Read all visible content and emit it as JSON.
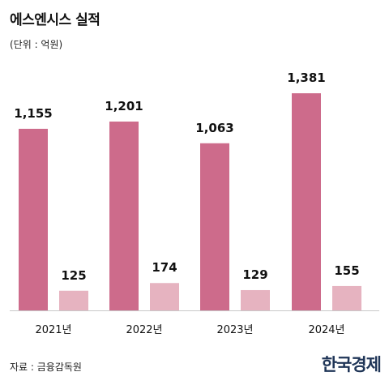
{
  "title": "에스엔시스 실적",
  "unit": "(단위 : 억원)",
  "source": "자료 : 금융감독원",
  "logo": "한국경제",
  "colors": {
    "series1": "#cd6b8b",
    "series2": "#e6b3c0",
    "axis": "#c8c8c8"
  },
  "chart_data": {
    "type": "bar",
    "categories": [
      "2021년",
      "2022년",
      "2023년",
      "2024년"
    ],
    "series": [
      {
        "values": [
          1155,
          1201,
          1063,
          1381
        ]
      },
      {
        "values": [
          125,
          174,
          129,
          155
        ]
      }
    ],
    "ylim": [
      0,
      1500
    ],
    "grid": false
  }
}
